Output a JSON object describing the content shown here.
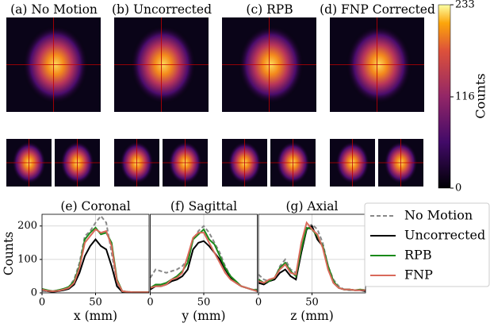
{
  "chart_data": [
    {
      "type": "image",
      "panels": [
        "(a) No Motion",
        "(b) Uncorrected",
        "(c) RPB",
        "(d) FNP Corrected"
      ],
      "colorbar": {
        "label": "Counts",
        "lim": [
          0,
          233
        ],
        "ticks": [
          0,
          116,
          233
        ]
      }
    },
    {
      "type": "line",
      "title": "(e) Coronal",
      "xlabel": "x (mm)",
      "ylabel": "Counts",
      "x": [
        0,
        5,
        10,
        15,
        20,
        25,
        30,
        35,
        40,
        45,
        50,
        55,
        60,
        65,
        70,
        75,
        80,
        85,
        90,
        95,
        100
      ],
      "xlim": [
        0,
        100
      ],
      "xticks": [
        0,
        50
      ],
      "ylim": [
        0,
        235
      ],
      "yticks": [
        0,
        100,
        200
      ],
      "grid": true,
      "series": [
        {
          "name": "No Motion",
          "color": "#888888",
          "dashed": true,
          "values": [
            5,
            5,
            5,
            8,
            12,
            18,
            40,
            90,
            170,
            185,
            210,
            230,
            210,
            120,
            30,
            5,
            3,
            2,
            2,
            2,
            2
          ]
        },
        {
          "name": "Uncorrected",
          "color": "#000000",
          "values": [
            10,
            5,
            3,
            5,
            8,
            12,
            25,
            60,
            110,
            140,
            160,
            140,
            130,
            80,
            20,
            3,
            2,
            2,
            2,
            2,
            2
          ]
        },
        {
          "name": "RPB",
          "color": "#1a8a1a",
          "values": [
            12,
            8,
            5,
            8,
            12,
            18,
            35,
            80,
            160,
            180,
            195,
            175,
            180,
            150,
            40,
            5,
            3,
            2,
            2,
            2,
            2
          ]
        },
        {
          "name": "FNP",
          "color": "#d9695a",
          "values": [
            10,
            6,
            5,
            6,
            10,
            15,
            30,
            75,
            150,
            170,
            190,
            180,
            185,
            140,
            35,
            5,
            3,
            2,
            2,
            2,
            2
          ]
        }
      ]
    },
    {
      "type": "line",
      "title": "(f) Sagittal",
      "xlabel": "y (mm)",
      "x": [
        0,
        5,
        10,
        15,
        20,
        25,
        30,
        35,
        40,
        45,
        50,
        55,
        60,
        65,
        70,
        75,
        80,
        85,
        90,
        95,
        100
      ],
      "xlim": [
        0,
        100
      ],
      "xticks": [
        0,
        50
      ],
      "ylim": [
        0,
        235
      ],
      "grid": true,
      "series": [
        {
          "color": "#888888",
          "dashed": true,
          "values": [
            45,
            70,
            65,
            60,
            65,
            70,
            80,
            100,
            160,
            185,
            200,
            180,
            150,
            120,
            80,
            50,
            30,
            20,
            15,
            10,
            10
          ]
        },
        {
          "color": "#000000",
          "values": [
            10,
            20,
            20,
            25,
            35,
            40,
            50,
            70,
            130,
            150,
            155,
            140,
            120,
            100,
            70,
            45,
            30,
            20,
            15,
            10,
            5
          ]
        },
        {
          "color": "#1a8a1a",
          "values": [
            15,
            25,
            25,
            30,
            40,
            50,
            65,
            90,
            160,
            175,
            190,
            160,
            145,
            110,
            75,
            50,
            35,
            20,
            15,
            10,
            8
          ]
        },
        {
          "color": "#d9695a",
          "values": [
            15,
            20,
            20,
            25,
            40,
            45,
            60,
            110,
            165,
            180,
            180,
            150,
            120,
            90,
            60,
            40,
            30,
            20,
            15,
            10,
            5
          ]
        }
      ]
    },
    {
      "type": "line",
      "title": "(g) Axial",
      "xlabel": "z (mm)",
      "x": [
        0,
        5,
        10,
        15,
        20,
        25,
        30,
        35,
        40,
        45,
        50,
        55,
        60,
        65,
        70,
        75,
        80,
        85,
        90,
        95,
        100
      ],
      "xlim": [
        0,
        100
      ],
      "xticks": [
        0,
        50
      ],
      "ylim": [
        0,
        235
      ],
      "grid": true,
      "series": [
        {
          "color": "#888888",
          "dashed": true,
          "values": [
            55,
            40,
            35,
            40,
            80,
            100,
            70,
            60,
            120,
            195,
            205,
            190,
            150,
            80,
            40,
            20,
            10,
            8,
            8,
            8,
            10
          ]
        },
        {
          "color": "#000000",
          "values": [
            30,
            25,
            35,
            40,
            60,
            70,
            50,
            40,
            120,
            190,
            200,
            160,
            140,
            80,
            30,
            15,
            10,
            10,
            8,
            8,
            5
          ]
        },
        {
          "color": "#1a8a1a",
          "values": [
            40,
            30,
            35,
            45,
            75,
            90,
            65,
            50,
            130,
            195,
            190,
            170,
            140,
            80,
            35,
            15,
            10,
            10,
            8,
            10,
            8
          ]
        },
        {
          "color": "#d9695a",
          "values": [
            35,
            30,
            40,
            45,
            70,
            85,
            60,
            55,
            150,
            210,
            190,
            175,
            135,
            70,
            30,
            15,
            10,
            10,
            8,
            8,
            8
          ]
        }
      ]
    }
  ]
}
